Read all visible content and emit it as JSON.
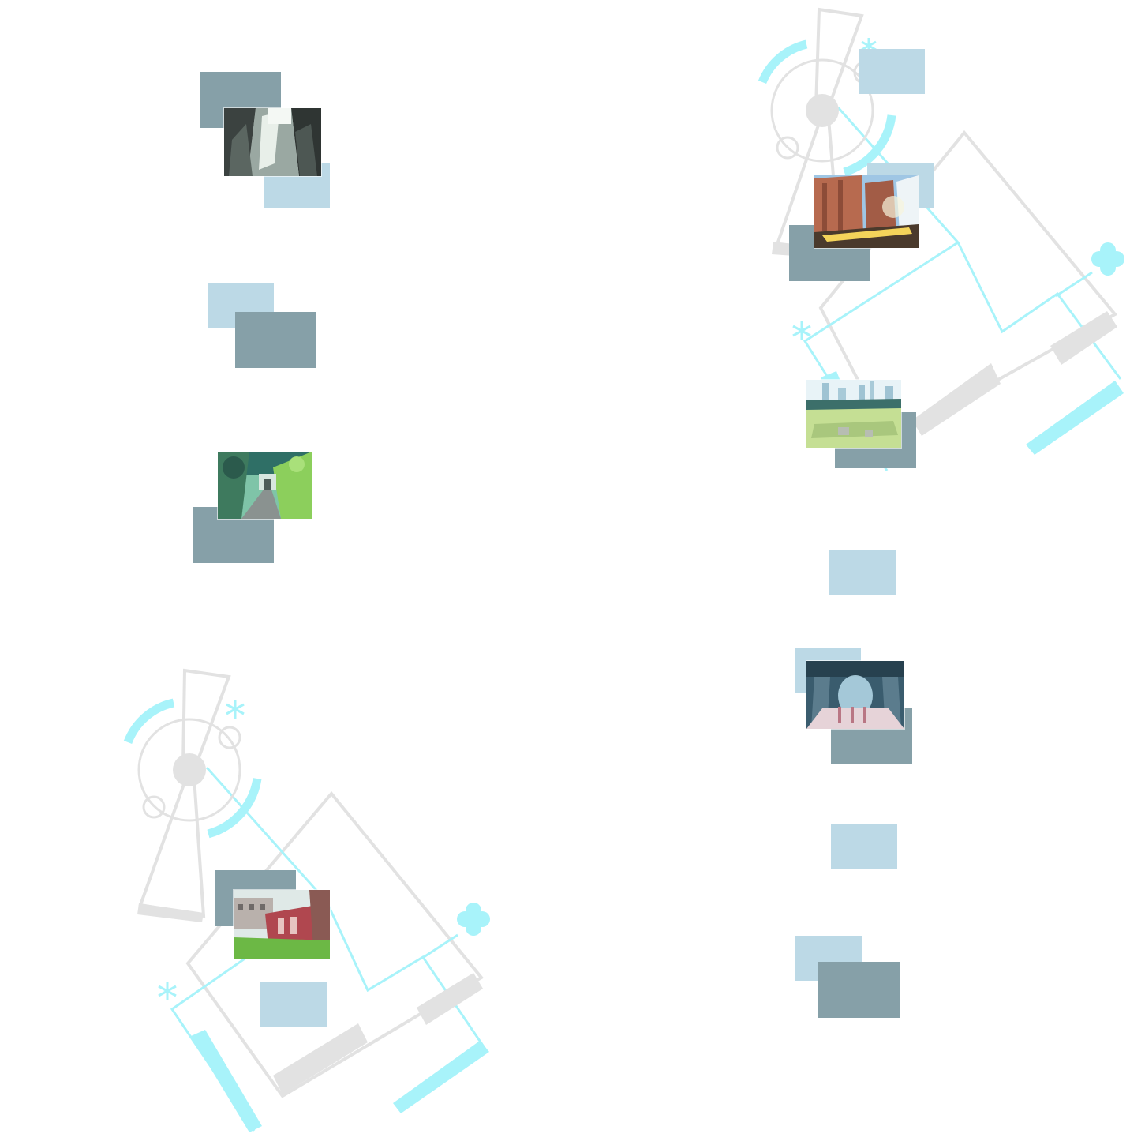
{
  "screen": {
    "background": "#ffffff",
    "colors": {
      "tile_dark": "#86a0a8",
      "tile_light": "#bcd9e6",
      "emblem_gray": "#e2e2e2",
      "emblem_cyan": "#a8f3fa"
    }
  },
  "left_column": {
    "nodes": [
      {
        "thumbnail": "ruins-interior-scene",
        "state": "unlocked"
      },
      {
        "thumbnail": "",
        "state": "empty"
      },
      {
        "thumbnail": "forest-tunnel-scene",
        "state": "unlocked"
      },
      {
        "thumbnail": "castle-garden-scene",
        "state": "unlocked"
      },
      {
        "thumbnail": "",
        "state": "empty"
      }
    ]
  },
  "right_column": {
    "nodes": [
      {
        "thumbnail": "",
        "state": "empty"
      },
      {
        "thumbnail": "cliff-ruins-sunlight-scene",
        "state": "unlocked"
      },
      {
        "thumbnail": "city-skyline-meadow-scene",
        "state": "unlocked"
      },
      {
        "thumbnail": "",
        "state": "empty"
      },
      {
        "thumbnail": "cathedral-hall-scene",
        "state": "unlocked"
      },
      {
        "thumbnail": "",
        "state": "empty"
      },
      {
        "thumbnail": "",
        "state": "empty"
      }
    ]
  },
  "icons": [
    "clock-emblem-icon",
    "flower-icon",
    "asterisk-icon"
  ]
}
